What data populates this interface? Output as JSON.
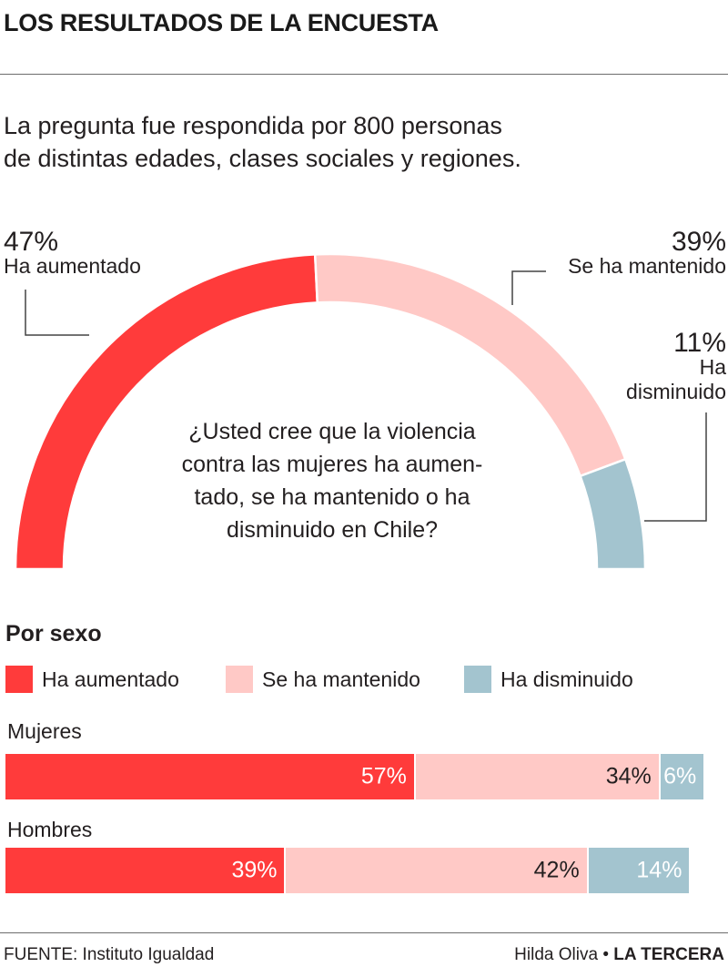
{
  "header": {
    "title": "LOS RESULTADOS DE LA ENCUESTA",
    "intro_line1": "La pregunta fue respondida por 800 personas",
    "intro_line2": "de distintas edades, clases sociales y regiones."
  },
  "colors": {
    "aumentado": "#ff3b3b",
    "mantenido": "#ffc9c6",
    "disminuido": "#a3c4cf",
    "leader": "#444444"
  },
  "chart_data": [
    {
      "type": "pie",
      "subtype": "semicircle-donut",
      "question": "¿Usted cree que la violencia contra las mujeres ha aumentado, se ha mantenido o ha disminuido en Chile?",
      "question_lines": [
        "¿Usted cree que la violencia",
        "contra las mujeres ha aumen-",
        "tado, se ha mantenido o ha",
        "disminuido en Chile?"
      ],
      "categories": [
        "Ha aumentado",
        "Se ha mantenido",
        "Ha disminuido"
      ],
      "values": [
        47,
        39,
        11
      ],
      "value_labels": [
        "47%",
        "39%",
        "11%"
      ],
      "label_lines": {
        "aumentado": [
          "Ha aumentado"
        ],
        "mantenido": [
          "Se ha mantenido"
        ],
        "disminuido": [
          "Ha",
          "disminuido"
        ]
      }
    },
    {
      "type": "bar",
      "orientation": "horizontal-stacked",
      "title": "Por sexo",
      "legend": [
        "Ha aumentado",
        "Se ha mantenido",
        "Ha disminuido"
      ],
      "categories": [
        "Mujeres",
        "Hombres"
      ],
      "series": [
        {
          "name": "Ha aumentado",
          "values": [
            57,
            39
          ],
          "labels": [
            "57%",
            "39%"
          ]
        },
        {
          "name": "Se ha mantenido",
          "values": [
            34,
            42
          ],
          "labels": [
            "34%",
            "42%"
          ]
        },
        {
          "name": "Ha disminuido",
          "values": [
            6,
            14
          ],
          "labels": [
            "6%",
            "14%"
          ]
        }
      ]
    }
  ],
  "footer": {
    "source": "FUENTE: Instituto Igualdad",
    "author": "Hilda Oliva",
    "separator": "•",
    "outlet": "LA TERCERA"
  }
}
